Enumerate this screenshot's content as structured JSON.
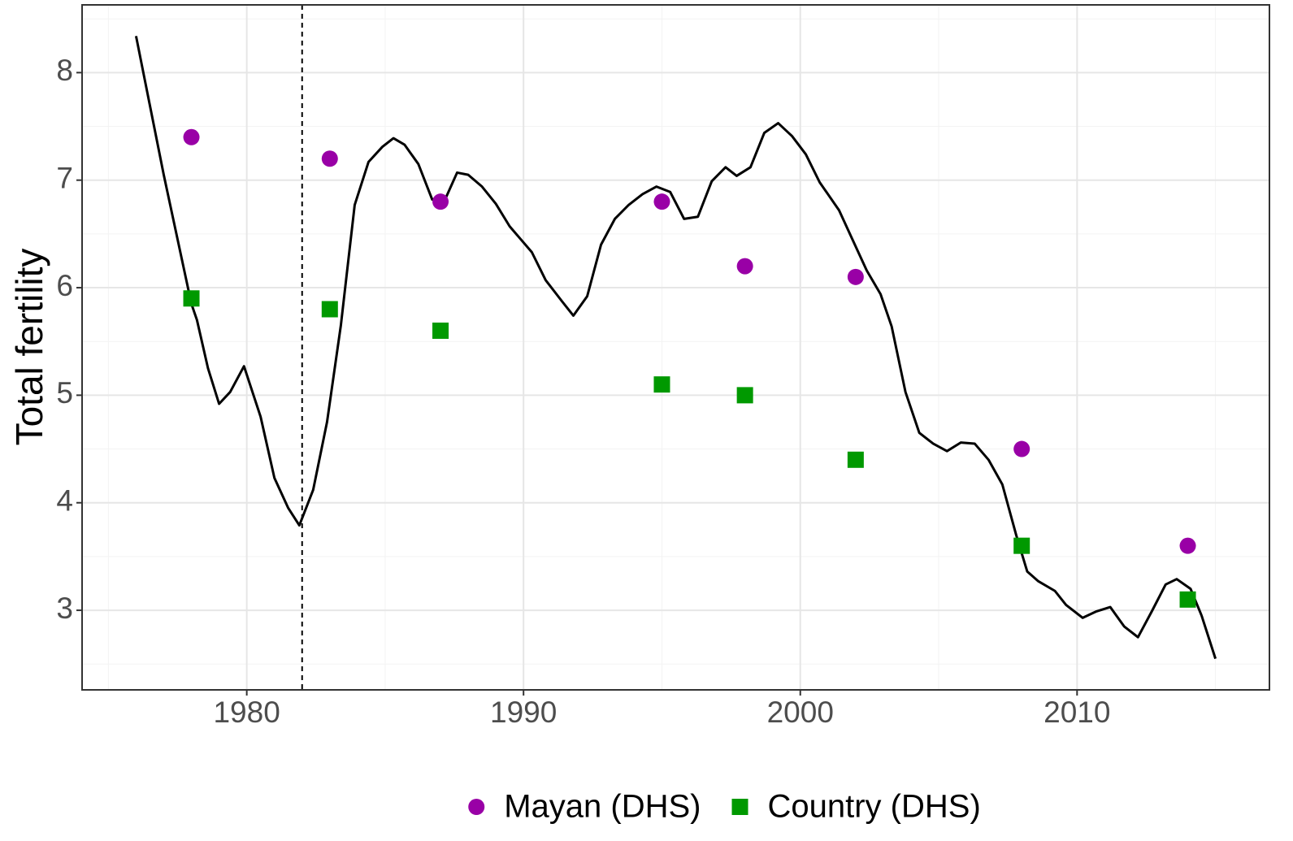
{
  "chart_data": {
    "type": "line",
    "y_label": "Total fertility",
    "xlim": [
      1974.05,
      2016.95
    ],
    "xticks": [
      1980,
      1990,
      2000,
      2010
    ],
    "minor_xticks": [
      1975,
      1985,
      1995,
      2005,
      2015
    ],
    "ylim": [
      2.26,
      8.63
    ],
    "yticks": [
      3,
      4,
      5,
      6,
      7,
      8
    ],
    "minor_yticks": [
      2.5,
      3.5,
      4.5,
      5.5,
      6.5,
      7.5,
      8.5
    ],
    "grid": true,
    "legend": "bottom",
    "vline": 1982,
    "series": [
      {
        "color": "#000000",
        "marker": "none",
        "x": [
          1976.0,
          1977.0,
          1978.0,
          1978.2,
          1978.6,
          1979.0,
          1979.4,
          1979.9,
          1980.5,
          1981.0,
          1981.5,
          1981.9,
          1982.4,
          1982.9,
          1983.4,
          1983.9,
          1984.4,
          1984.9,
          1985.3,
          1985.7,
          1986.2,
          1986.7,
          1987.2,
          1987.6,
          1988.0,
          1988.5,
          1989.0,
          1989.5,
          1990.3,
          1990.8,
          1991.4,
          1991.8,
          1992.3,
          1992.8,
          1993.3,
          1993.8,
          1994.3,
          1994.8,
          1995.3,
          1995.8,
          1996.3,
          1996.8,
          1997.3,
          1997.7,
          1998.2,
          1998.7,
          1999.2,
          1999.7,
          2000.2,
          2000.7,
          2001.4,
          2001.9,
          2002.4,
          2002.9,
          2003.3,
          2003.8,
          2004.3,
          2004.8,
          2005.3,
          2005.8,
          2006.3,
          2006.8,
          2007.3,
          2007.8,
          2008.2,
          2008.6,
          2009.2,
          2009.6,
          2010.2,
          2010.7,
          2011.2,
          2011.7,
          2012.2,
          2012.7,
          2013.2,
          2013.6,
          2014.1,
          2014.5,
          2015.0
        ],
        "values": [
          8.34,
          7.05,
          5.85,
          5.7,
          5.25,
          4.92,
          5.03,
          5.27,
          4.8,
          4.23,
          3.95,
          3.79,
          4.12,
          4.75,
          5.65,
          6.77,
          7.17,
          7.31,
          7.39,
          7.33,
          7.15,
          6.82,
          6.84,
          7.07,
          7.05,
          6.94,
          6.78,
          6.57,
          6.33,
          6.07,
          5.87,
          5.74,
          5.92,
          6.4,
          6.64,
          6.77,
          6.87,
          6.94,
          6.89,
          6.64,
          6.66,
          6.99,
          7.12,
          7.04,
          7.12,
          7.44,
          7.53,
          7.41,
          7.24,
          6.98,
          6.72,
          6.44,
          6.16,
          5.94,
          5.64,
          5.03,
          4.65,
          4.55,
          4.48,
          4.56,
          4.55,
          4.4,
          4.17,
          3.7,
          3.36,
          3.27,
          3.18,
          3.05,
          2.93,
          2.99,
          3.03,
          2.85,
          2.75,
          2.99,
          3.24,
          3.29,
          3.2,
          2.95,
          2.55
        ]
      },
      {
        "name": "Mayan (DHS)",
        "color": "#9900a6",
        "marker": "circle",
        "x": [
          1978,
          1983,
          1987,
          1995,
          1998,
          2002,
          2008,
          2014
        ],
        "values": [
          7.4,
          7.2,
          6.8,
          6.8,
          6.2,
          6.1,
          4.5,
          3.6
        ]
      },
      {
        "name": "Country (DHS)",
        "color": "#009900",
        "marker": "square",
        "x": [
          1978,
          1983,
          1987,
          1995,
          1998,
          2002,
          2008,
          2014
        ],
        "values": [
          5.9,
          5.8,
          5.6,
          5.1,
          5.0,
          4.4,
          3.6,
          3.1
        ]
      }
    ]
  }
}
